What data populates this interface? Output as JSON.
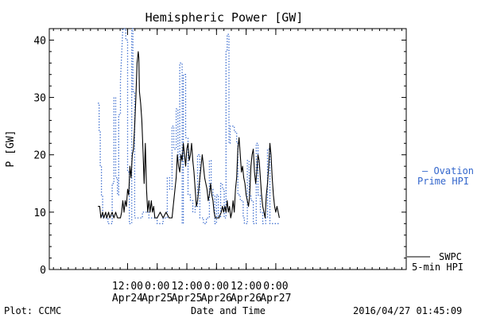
{
  "chart_data": {
    "type": "line",
    "title": "Hemispheric Power [GW]",
    "xlabel": "Date and Time",
    "ylabel": "P [GW]",
    "ylim": [
      0,
      42
    ],
    "xlim_hours": [
      -0.82,
      5.2
    ],
    "grid": false,
    "yticks": [
      {
        "v": 0,
        "label": "0"
      },
      {
        "v": 10,
        "label": "10"
      },
      {
        "v": 20,
        "label": "20"
      },
      {
        "v": 30,
        "label": "30"
      },
      {
        "v": 40,
        "label": "40"
      }
    ],
    "xticks": [
      {
        "x": 0.5,
        "time": "12:00",
        "date": "Apr24"
      },
      {
        "x": 1.0,
        "time": "0:00",
        "date": "Apr25"
      },
      {
        "x": 1.5,
        "time": "12:00",
        "date": "Apr25"
      },
      {
        "x": 2.0,
        "time": "0:00",
        "date": "Apr26"
      },
      {
        "x": 2.5,
        "time": "12:00",
        "date": "Apr26"
      },
      {
        "x": 3.0,
        "time": "0:00",
        "date": "Apr27"
      }
    ],
    "series": [
      {
        "name": "SWPC 5-min HPI",
        "color": "#000000",
        "style": "solid",
        "points": [
          [
            0.0,
            11
          ],
          [
            0.03,
            11
          ],
          [
            0.05,
            9
          ],
          [
            0.08,
            10
          ],
          [
            0.1,
            9
          ],
          [
            0.13,
            10
          ],
          [
            0.15,
            9
          ],
          [
            0.18,
            10
          ],
          [
            0.2,
            9
          ],
          [
            0.24,
            10
          ],
          [
            0.27,
            9
          ],
          [
            0.3,
            10
          ],
          [
            0.33,
            9
          ],
          [
            0.38,
            9
          ],
          [
            0.4,
            10
          ],
          [
            0.42,
            12
          ],
          [
            0.44,
            10
          ],
          [
            0.46,
            12
          ],
          [
            0.48,
            11
          ],
          [
            0.5,
            14
          ],
          [
            0.52,
            13
          ],
          [
            0.54,
            18
          ],
          [
            0.56,
            16
          ],
          [
            0.58,
            20
          ],
          [
            0.6,
            21
          ],
          [
            0.62,
            25
          ],
          [
            0.64,
            30
          ],
          [
            0.66,
            36
          ],
          [
            0.68,
            38
          ],
          [
            0.69,
            37
          ],
          [
            0.7,
            31
          ],
          [
            0.72,
            29
          ],
          [
            0.74,
            26
          ],
          [
            0.76,
            21
          ],
          [
            0.78,
            15
          ],
          [
            0.8,
            22
          ],
          [
            0.82,
            14
          ],
          [
            0.84,
            10
          ],
          [
            0.86,
            12
          ],
          [
            0.88,
            10
          ],
          [
            0.9,
            12
          ],
          [
            0.92,
            10
          ],
          [
            0.94,
            11
          ],
          [
            0.96,
            9
          ],
          [
            1.0,
            9
          ],
          [
            1.05,
            10
          ],
          [
            1.1,
            9
          ],
          [
            1.15,
            10
          ],
          [
            1.2,
            9
          ],
          [
            1.25,
            9
          ],
          [
            1.28,
            12
          ],
          [
            1.3,
            14
          ],
          [
            1.32,
            16
          ],
          [
            1.34,
            20
          ],
          [
            1.36,
            18
          ],
          [
            1.38,
            17
          ],
          [
            1.4,
            20
          ],
          [
            1.42,
            19
          ],
          [
            1.44,
            22
          ],
          [
            1.46,
            20
          ],
          [
            1.48,
            18
          ],
          [
            1.5,
            21
          ],
          [
            1.52,
            22
          ],
          [
            1.54,
            19
          ],
          [
            1.56,
            20
          ],
          [
            1.58,
            22
          ],
          [
            1.6,
            19
          ],
          [
            1.62,
            17
          ],
          [
            1.64,
            14
          ],
          [
            1.66,
            11
          ],
          [
            1.68,
            12
          ],
          [
            1.7,
            14
          ],
          [
            1.72,
            16
          ],
          [
            1.74,
            18
          ],
          [
            1.76,
            20
          ],
          [
            1.78,
            18
          ],
          [
            1.8,
            16
          ],
          [
            1.82,
            15
          ],
          [
            1.84,
            14
          ],
          [
            1.86,
            12
          ],
          [
            1.88,
            13
          ],
          [
            1.9,
            15
          ],
          [
            1.92,
            13
          ],
          [
            1.94,
            12
          ],
          [
            1.96,
            10
          ],
          [
            1.98,
            9
          ],
          [
            2.0,
            9
          ],
          [
            2.04,
            9
          ],
          [
            2.08,
            10
          ],
          [
            2.1,
            11
          ],
          [
            2.12,
            10
          ],
          [
            2.14,
            11
          ],
          [
            2.16,
            10
          ],
          [
            2.18,
            12
          ],
          [
            2.2,
            10
          ],
          [
            2.22,
            11
          ],
          [
            2.24,
            9
          ],
          [
            2.26,
            10
          ],
          [
            2.28,
            12
          ],
          [
            2.3,
            10
          ],
          [
            2.32,
            14
          ],
          [
            2.34,
            16
          ],
          [
            2.36,
            21
          ],
          [
            2.38,
            23
          ],
          [
            2.4,
            20
          ],
          [
            2.42,
            17
          ],
          [
            2.44,
            18
          ],
          [
            2.46,
            16
          ],
          [
            2.48,
            15
          ],
          [
            2.5,
            13
          ],
          [
            2.52,
            12
          ],
          [
            2.54,
            11
          ],
          [
            2.56,
            13
          ],
          [
            2.58,
            18
          ],
          [
            2.6,
            20
          ],
          [
            2.62,
            21
          ],
          [
            2.64,
            17
          ],
          [
            2.66,
            15
          ],
          [
            2.68,
            17
          ],
          [
            2.7,
            20
          ],
          [
            2.72,
            19
          ],
          [
            2.74,
            16
          ],
          [
            2.76,
            13
          ],
          [
            2.78,
            11
          ],
          [
            2.8,
            10
          ],
          [
            2.82,
            9
          ],
          [
            2.84,
            13
          ],
          [
            2.86,
            15
          ],
          [
            2.88,
            18
          ],
          [
            2.9,
            22
          ],
          [
            2.92,
            20
          ],
          [
            2.94,
            16
          ],
          [
            2.96,
            13
          ],
          [
            2.98,
            11
          ],
          [
            3.0,
            10
          ],
          [
            3.02,
            11
          ],
          [
            3.04,
            10
          ],
          [
            3.06,
            9
          ]
        ]
      },
      {
        "name": "Ovation Prime HPI",
        "color": "#3366cc",
        "style": "dotted",
        "points": [
          [
            0.0,
            29
          ],
          [
            0.02,
            29
          ],
          [
            0.02,
            24
          ],
          [
            0.04,
            24
          ],
          [
            0.04,
            18
          ],
          [
            0.06,
            18
          ],
          [
            0.06,
            13
          ],
          [
            0.08,
            13
          ],
          [
            0.08,
            9
          ],
          [
            0.17,
            9
          ],
          [
            0.17,
            8
          ],
          [
            0.24,
            8
          ],
          [
            0.24,
            15
          ],
          [
            0.27,
            15
          ],
          [
            0.27,
            30
          ],
          [
            0.3,
            30
          ],
          [
            0.3,
            16
          ],
          [
            0.33,
            16
          ],
          [
            0.33,
            13
          ],
          [
            0.35,
            13
          ],
          [
            0.35,
            27
          ],
          [
            0.38,
            27
          ],
          [
            0.38,
            33
          ],
          [
            0.42,
            42
          ],
          [
            0.47,
            42
          ],
          [
            0.47,
            40
          ],
          [
            0.5,
            40
          ],
          [
            0.5,
            17
          ],
          [
            0.53,
            17
          ],
          [
            0.53,
            8
          ],
          [
            0.57,
            8
          ],
          [
            0.57,
            42
          ],
          [
            0.59,
            42
          ],
          [
            0.59,
            31
          ],
          [
            0.62,
            31
          ],
          [
            0.62,
            9
          ],
          [
            0.75,
            9
          ],
          [
            0.75,
            10
          ],
          [
            0.86,
            10
          ],
          [
            0.86,
            9
          ],
          [
            1.0,
            9
          ],
          [
            1.0,
            8
          ],
          [
            1.1,
            8
          ],
          [
            1.1,
            9
          ],
          [
            1.17,
            9
          ],
          [
            1.17,
            16
          ],
          [
            1.21,
            16
          ],
          [
            1.21,
            14
          ],
          [
            1.25,
            14
          ],
          [
            1.25,
            25
          ],
          [
            1.28,
            25
          ],
          [
            1.28,
            21
          ],
          [
            1.32,
            21
          ],
          [
            1.32,
            28
          ],
          [
            1.35,
            28
          ],
          [
            1.35,
            19
          ],
          [
            1.38,
            19
          ],
          [
            1.38,
            36
          ],
          [
            1.42,
            36
          ],
          [
            1.42,
            8
          ],
          [
            1.44,
            8
          ],
          [
            1.44,
            34
          ],
          [
            1.48,
            34
          ],
          [
            1.48,
            23
          ],
          [
            1.52,
            23
          ],
          [
            1.52,
            13
          ],
          [
            1.56,
            13
          ],
          [
            1.56,
            12
          ],
          [
            1.6,
            12
          ],
          [
            1.6,
            10
          ],
          [
            1.64,
            10
          ],
          [
            1.64,
            11
          ],
          [
            1.68,
            11
          ],
          [
            1.68,
            20
          ],
          [
            1.72,
            20
          ],
          [
            1.72,
            9
          ],
          [
            1.78,
            9
          ],
          [
            1.78,
            8
          ],
          [
            1.83,
            8
          ],
          [
            1.83,
            9
          ],
          [
            1.88,
            9
          ],
          [
            1.88,
            19
          ],
          [
            1.91,
            19
          ],
          [
            1.91,
            14
          ],
          [
            1.94,
            14
          ],
          [
            1.94,
            13
          ],
          [
            1.97,
            13
          ],
          [
            1.97,
            8
          ],
          [
            2.0,
            8
          ],
          [
            2.0,
            13
          ],
          [
            2.03,
            13
          ],
          [
            2.03,
            9
          ],
          [
            2.07,
            9
          ],
          [
            2.07,
            15
          ],
          [
            2.1,
            15
          ],
          [
            2.1,
            14
          ],
          [
            2.13,
            14
          ],
          [
            2.13,
            9
          ],
          [
            2.16,
            9
          ],
          [
            2.16,
            38
          ],
          [
            2.18,
            38
          ],
          [
            2.18,
            41
          ],
          [
            2.21,
            41
          ],
          [
            2.21,
            22
          ],
          [
            2.23,
            22
          ],
          [
            2.23,
            25
          ],
          [
            2.3,
            25
          ],
          [
            2.3,
            24
          ],
          [
            2.34,
            24
          ],
          [
            2.34,
            22
          ],
          [
            2.36,
            22
          ],
          [
            2.36,
            13
          ],
          [
            2.4,
            13
          ],
          [
            2.4,
            12
          ],
          [
            2.45,
            12
          ],
          [
            2.45,
            9
          ],
          [
            2.47,
            9
          ],
          [
            2.47,
            8
          ],
          [
            2.52,
            8
          ],
          [
            2.52,
            19
          ],
          [
            2.55,
            19
          ],
          [
            2.55,
            13
          ],
          [
            2.58,
            13
          ],
          [
            2.58,
            12
          ],
          [
            2.62,
            12
          ],
          [
            2.62,
            8
          ],
          [
            2.67,
            8
          ],
          [
            2.67,
            22
          ],
          [
            2.7,
            22
          ],
          [
            2.7,
            13
          ],
          [
            2.74,
            13
          ],
          [
            2.74,
            10
          ],
          [
            2.78,
            10
          ],
          [
            2.78,
            8
          ],
          [
            2.83,
            8
          ],
          [
            2.83,
            9
          ],
          [
            2.86,
            9
          ],
          [
            2.86,
            21
          ],
          [
            2.9,
            21
          ],
          [
            2.9,
            8
          ],
          [
            3.06,
            8
          ]
        ]
      }
    ],
    "legend": {
      "placement": "right",
      "ovation_label_line1": "– Ovation",
      "ovation_label_line2": "Prime HPI",
      "swpc_label_line1": "SWPC",
      "swpc_label_line2": "5-min HPI"
    }
  },
  "footer": {
    "plot_credit": "Plot: CCMC",
    "timestamp": "2016/04/27 01:45:09"
  }
}
